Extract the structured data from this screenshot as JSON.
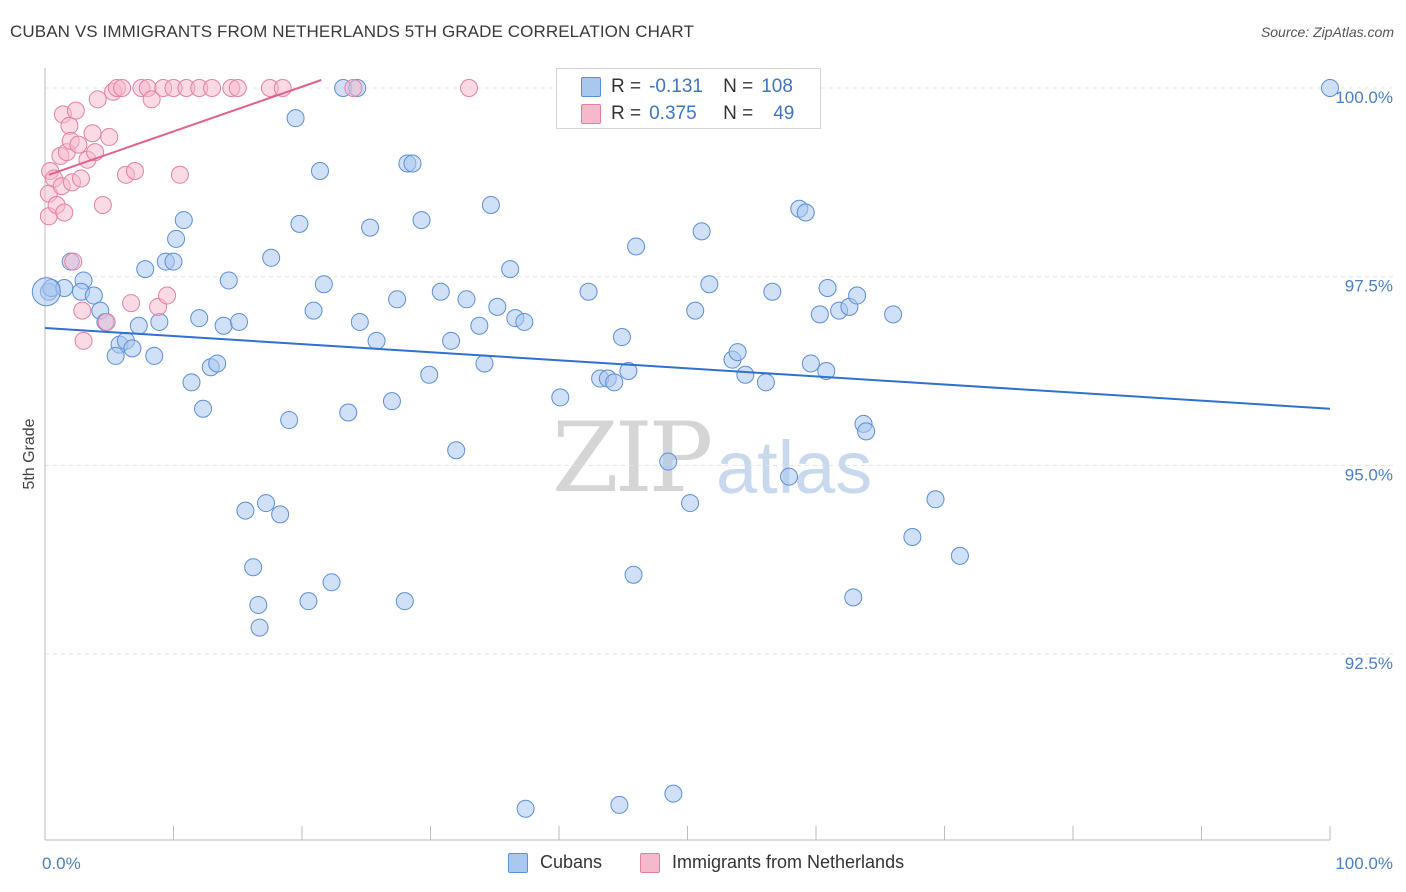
{
  "title": "CUBAN VS IMMIGRANTS FROM NETHERLANDS 5TH GRADE CORRELATION CHART",
  "source": "Source: ZipAtlas.com",
  "watermark": {
    "zip": "ZIP",
    "atlas": "atlas"
  },
  "legend": {
    "rows": [
      {
        "r_label": "R =",
        "r_value": "-0.131",
        "n_label": "N =",
        "n_value": "108"
      },
      {
        "r_label": "R =",
        "r_value": "0.375",
        "n_label": "N =",
        "n_value": "49"
      }
    ]
  },
  "bottom_legend": {
    "cubans": "Cubans",
    "netherlands": "Immigrants from Netherlands"
  },
  "colors": {
    "blue_fill": "#aac7ee",
    "blue_stroke": "#5b8fd6",
    "blue_line": "#2f70d0",
    "pink_fill": "#f6b8cb",
    "pink_stroke": "#e57fa0",
    "pink_line": "#e0628a",
    "tick_text": "#4a7fc7",
    "grid": "#e3e3e3"
  },
  "chart_data": {
    "type": "scatter",
    "title": "CUBAN VS IMMIGRANTS FROM NETHERLANDS 5TH GRADE CORRELATION CHART",
    "xlabel": "",
    "ylabel": "5th Grade",
    "xlim": [
      0,
      100
    ],
    "ylim": [
      90.2,
      100.2
    ],
    "x_tick_labels": [
      "0.0%",
      "100.0%"
    ],
    "y_ticks": [
      {
        "value": 100.0,
        "label": "100.0%"
      },
      {
        "value": 97.5,
        "label": "97.5%"
      },
      {
        "value": 95.0,
        "label": "95.0%"
      },
      {
        "value": 92.5,
        "label": "92.5%"
      }
    ],
    "grid": "horizontal dashed",
    "series": [
      {
        "name": "Cubans",
        "color": "#5b8fd6",
        "r": -0.131,
        "n": 108,
        "trend": {
          "x": [
            0,
            100
          ],
          "y": [
            96.82,
            95.75
          ]
        },
        "points": [
          [
            0.3,
            97.3
          ],
          [
            0.5,
            97.35
          ],
          [
            1.5,
            97.35
          ],
          [
            2.0,
            97.7
          ],
          [
            3.0,
            97.45
          ],
          [
            2.8,
            97.3
          ],
          [
            3.8,
            97.25
          ],
          [
            4.3,
            97.05
          ],
          [
            4.7,
            96.9
          ],
          [
            5.8,
            96.6
          ],
          [
            5.5,
            96.45
          ],
          [
            6.3,
            96.65
          ],
          [
            6.8,
            96.55
          ],
          [
            7.3,
            96.85
          ],
          [
            7.8,
            97.6
          ],
          [
            8.5,
            96.45
          ],
          [
            8.9,
            96.9
          ],
          [
            9.4,
            97.7
          ],
          [
            10.0,
            97.7
          ],
          [
            10.2,
            98.0
          ],
          [
            10.8,
            98.25
          ],
          [
            11.4,
            96.1
          ],
          [
            12.0,
            96.95
          ],
          [
            12.3,
            95.75
          ],
          [
            12.9,
            96.3
          ],
          [
            13.4,
            96.35
          ],
          [
            13.9,
            96.85
          ],
          [
            14.3,
            97.45
          ],
          [
            15.1,
            96.9
          ],
          [
            15.6,
            94.4
          ],
          [
            16.2,
            93.65
          ],
          [
            16.6,
            93.15
          ],
          [
            16.7,
            92.85
          ],
          [
            17.2,
            94.5
          ],
          [
            17.6,
            97.75
          ],
          [
            18.3,
            94.35
          ],
          [
            19.0,
            95.6
          ],
          [
            19.5,
            99.6
          ],
          [
            19.8,
            98.2
          ],
          [
            20.5,
            93.2
          ],
          [
            20.9,
            97.05
          ],
          [
            21.4,
            98.9
          ],
          [
            21.7,
            97.4
          ],
          [
            22.3,
            93.45
          ],
          [
            23.2,
            100.0
          ],
          [
            23.6,
            95.7
          ],
          [
            24.3,
            100.0
          ],
          [
            24.5,
            96.9
          ],
          [
            25.3,
            98.15
          ],
          [
            25.8,
            96.65
          ],
          [
            27.0,
            95.85
          ],
          [
            27.4,
            97.2
          ],
          [
            28.0,
            93.2
          ],
          [
            28.2,
            99.0
          ],
          [
            28.6,
            99.0
          ],
          [
            29.3,
            98.25
          ],
          [
            29.9,
            96.2
          ],
          [
            30.8,
            97.3
          ],
          [
            31.6,
            96.65
          ],
          [
            32.0,
            95.2
          ],
          [
            32.8,
            97.2
          ],
          [
            33.8,
            96.85
          ],
          [
            34.2,
            96.35
          ],
          [
            34.7,
            98.45
          ],
          [
            35.2,
            97.1
          ],
          [
            36.2,
            97.6
          ],
          [
            36.6,
            96.95
          ],
          [
            37.3,
            96.9
          ],
          [
            37.4,
            90.45
          ],
          [
            40.1,
            95.9
          ],
          [
            42.3,
            97.3
          ],
          [
            43.2,
            96.15
          ],
          [
            43.8,
            96.15
          ],
          [
            44.3,
            96.1
          ],
          [
            44.7,
            90.5
          ],
          [
            44.9,
            96.7
          ],
          [
            45.4,
            96.25
          ],
          [
            45.8,
            93.55
          ],
          [
            46.0,
            97.9
          ],
          [
            48.5,
            95.05
          ],
          [
            48.9,
            90.65
          ],
          [
            50.2,
            94.5
          ],
          [
            50.6,
            97.05
          ],
          [
            51.1,
            98.1
          ],
          [
            51.7,
            97.4
          ],
          [
            53.5,
            96.4
          ],
          [
            53.9,
            96.5
          ],
          [
            54.5,
            96.2
          ],
          [
            56.1,
            96.1
          ],
          [
            56.6,
            97.3
          ],
          [
            57.9,
            94.85
          ],
          [
            58.7,
            98.4
          ],
          [
            59.2,
            98.35
          ],
          [
            59.6,
            96.35
          ],
          [
            60.3,
            97.0
          ],
          [
            60.8,
            96.25
          ],
          [
            60.9,
            97.35
          ],
          [
            61.8,
            97.05
          ],
          [
            62.6,
            97.1
          ],
          [
            62.9,
            93.25
          ],
          [
            63.2,
            97.25
          ],
          [
            63.7,
            95.55
          ],
          [
            63.9,
            95.45
          ],
          [
            67.5,
            94.05
          ],
          [
            69.3,
            94.55
          ],
          [
            71.2,
            93.8
          ],
          [
            66.0,
            97.0
          ],
          [
            100.0,
            100.0
          ]
        ]
      },
      {
        "name": "Immigrants from Netherlands",
        "color": "#e57fa0",
        "r": 0.375,
        "n": 49,
        "trend": {
          "x": [
            0.3,
            21.5
          ],
          "y": [
            98.85,
            100.0
          ]
        },
        "points": [
          [
            0.3,
            98.6
          ],
          [
            0.3,
            98.3
          ],
          [
            0.4,
            98.9
          ],
          [
            0.7,
            98.8
          ],
          [
            0.9,
            98.45
          ],
          [
            1.2,
            99.1
          ],
          [
            1.3,
            98.7
          ],
          [
            1.4,
            99.65
          ],
          [
            1.5,
            98.35
          ],
          [
            1.7,
            99.15
          ],
          [
            1.9,
            99.5
          ],
          [
            2.0,
            99.3
          ],
          [
            2.1,
            98.75
          ],
          [
            2.2,
            97.7
          ],
          [
            2.4,
            99.7
          ],
          [
            2.6,
            99.25
          ],
          [
            2.8,
            98.8
          ],
          [
            2.9,
            97.05
          ],
          [
            3.0,
            96.65
          ],
          [
            3.3,
            99.05
          ],
          [
            3.7,
            99.4
          ],
          [
            3.9,
            99.15
          ],
          [
            4.1,
            99.85
          ],
          [
            4.5,
            98.45
          ],
          [
            4.8,
            96.9
          ],
          [
            5.0,
            99.35
          ],
          [
            5.3,
            99.95
          ],
          [
            5.6,
            100.0
          ],
          [
            6.0,
            100.0
          ],
          [
            6.3,
            98.85
          ],
          [
            6.7,
            97.15
          ],
          [
            7.0,
            98.9
          ],
          [
            7.5,
            100.0
          ],
          [
            8.0,
            100.0
          ],
          [
            8.3,
            99.85
          ],
          [
            8.8,
            97.1
          ],
          [
            9.2,
            100.0
          ],
          [
            9.5,
            97.25
          ],
          [
            10.0,
            100.0
          ],
          [
            10.5,
            98.85
          ],
          [
            11.0,
            100.0
          ],
          [
            12.0,
            100.0
          ],
          [
            13.0,
            100.0
          ],
          [
            14.5,
            100.0
          ],
          [
            15.0,
            100.0
          ],
          [
            17.5,
            100.0
          ],
          [
            18.5,
            100.0
          ],
          [
            24.0,
            100.0
          ],
          [
            33.0,
            100.0
          ]
        ]
      }
    ]
  }
}
